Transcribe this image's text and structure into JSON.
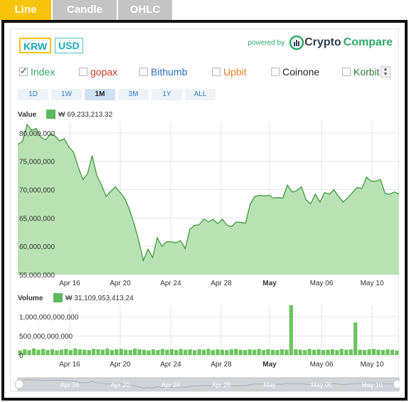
{
  "tabs": [
    {
      "label": "Line",
      "active": true
    },
    {
      "label": "Candle",
      "active": false
    },
    {
      "label": "OHLC",
      "active": false
    }
  ],
  "currency": [
    {
      "label": "KRW",
      "active": true
    },
    {
      "label": "USD",
      "active": false
    }
  ],
  "powered_by": {
    "text": "powered by",
    "brand_a": "Crypto",
    "brand_b": "Compare"
  },
  "exchanges": [
    {
      "label": "Index",
      "checked": true,
      "color": "#2fa86a"
    },
    {
      "label": "gopax",
      "checked": false,
      "color": "#c0392b"
    },
    {
      "label": "Bithumb",
      "checked": false,
      "color": "#2a6fb5"
    },
    {
      "label": "Upbit",
      "checked": false,
      "color": "#e67e22"
    },
    {
      "label": "Coinone",
      "checked": false,
      "color": "#222222"
    },
    {
      "label": "Korbit",
      "checked": false,
      "color": "#2f7a3a"
    }
  ],
  "ranges": [
    {
      "label": "1D",
      "active": false
    },
    {
      "label": "1W",
      "active": false
    },
    {
      "label": "1M",
      "active": true
    },
    {
      "label": "3M",
      "active": false
    },
    {
      "label": "1Y",
      "active": false
    },
    {
      "label": "ALL",
      "active": false
    }
  ],
  "colors": {
    "accent": "#f7c40a",
    "series_line": "#3c9a3c",
    "series_fill": "#b9e2b4",
    "volume_bar": "#6cc45e"
  },
  "chart_data": [
    {
      "type": "area",
      "label": "Value",
      "readout": "₩ 69,233,213.32",
      "ylim": [
        55000000,
        82000000
      ],
      "yticks": [
        "80,000,000",
        "75,000,000",
        "70,000,000",
        "65,000,000",
        "60,000,000",
        "55,000,000"
      ],
      "ytick_values": [
        80000000,
        75000000,
        70000000,
        65000000,
        60000000,
        55000000
      ],
      "xticks": [
        "Apr 16",
        "Apr 20",
        "Apr 24",
        "Apr 28",
        "May",
        "May 06",
        "May 10"
      ],
      "xtick_bold": [
        false,
        false,
        false,
        false,
        true,
        false,
        false
      ],
      "grid": true,
      "values": [
        78000000,
        78500000,
        81500000,
        80500000,
        80800000,
        79200000,
        78800000,
        79800000,
        79500000,
        78600000,
        79000000,
        77500000,
        76600000,
        74000000,
        71800000,
        72800000,
        76000000,
        72500000,
        70800000,
        68800000,
        69700000,
        70500000,
        69500000,
        68500000,
        66500000,
        64000000,
        61000000,
        57500000,
        59500000,
        58000000,
        61500000,
        60000000,
        60800000,
        60800000,
        60600000,
        61000000,
        59600000,
        63000000,
        63700000,
        63800000,
        64800000,
        64300000,
        64800000,
        64000000,
        64800000,
        63700000,
        63500000,
        64300000,
        64200000,
        64100000,
        67500000,
        68800000,
        69000000,
        68900000,
        69000000,
        68500000,
        68600000,
        68500000,
        70800000,
        69600000,
        69800000,
        70500000,
        68200000,
        67500000,
        69200000,
        67800000,
        69500000,
        69200000,
        70000000,
        68800000,
        67800000,
        68600000,
        69500000,
        70400000,
        70200000,
        72200000,
        71500000,
        71500000,
        71800000,
        69300000,
        69200000,
        69600000,
        69233213
      ]
    },
    {
      "type": "bar",
      "label": "Volume",
      "readout": "₩ 31,109,953,413.24",
      "ylim": [
        0,
        1300000000000
      ],
      "yticks": [
        "1,000,000,000,000",
        "500,000,000,000",
        "0"
      ],
      "ytick_values": [
        1000000000000,
        500000000000,
        0
      ],
      "xticks": [
        "Apr 16",
        "Apr 20",
        "Apr 24",
        "Apr 28",
        "May",
        "May 06",
        "May 10"
      ],
      "xtick_bold": [
        false,
        false,
        false,
        false,
        true,
        false,
        false
      ],
      "values": [
        120000000000,
        150000000000,
        130000000000,
        170000000000,
        140000000000,
        160000000000,
        130000000000,
        150000000000,
        120000000000,
        140000000000,
        160000000000,
        130000000000,
        170000000000,
        150000000000,
        140000000000,
        130000000000,
        160000000000,
        150000000000,
        140000000000,
        170000000000,
        130000000000,
        150000000000,
        160000000000,
        140000000000,
        130000000000,
        170000000000,
        150000000000,
        140000000000,
        120000000000,
        150000000000,
        130000000000,
        160000000000,
        140000000000,
        150000000000,
        130000000000,
        160000000000,
        140000000000,
        150000000000,
        130000000000,
        150000000000,
        140000000000,
        160000000000,
        130000000000,
        150000000000,
        140000000000,
        130000000000,
        150000000000,
        160000000000,
        140000000000,
        130000000000,
        150000000000,
        140000000000,
        160000000000,
        130000000000,
        150000000000,
        140000000000,
        130000000000,
        150000000000,
        140000000000,
        1300000000000,
        150000000000,
        140000000000,
        130000000000,
        160000000000,
        140000000000,
        150000000000,
        130000000000,
        140000000000,
        150000000000,
        130000000000,
        160000000000,
        140000000000,
        150000000000,
        850000000000,
        140000000000,
        130000000000,
        150000000000,
        160000000000,
        140000000000,
        130000000000,
        150000000000,
        140000000000,
        120000000000
      ]
    }
  ],
  "navigator": {
    "xticks": [
      "Apr 16",
      "Apr 20",
      "Apr 24",
      "Apr 28",
      "May",
      "May 06",
      "May 10"
    ]
  }
}
